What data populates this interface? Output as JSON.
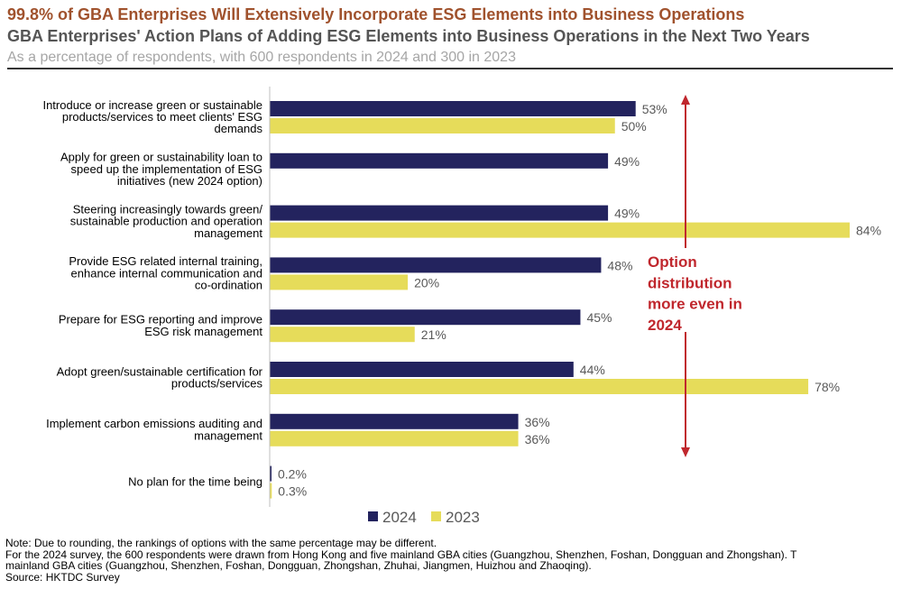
{
  "header": {
    "title": "99.8% of GBA Enterprises Will Extensively Incorporate ESG Elements into Business Operations",
    "subtitle": "GBA Enterprises' Action Plans of Adding ESG Elements into Business Operations in the Next Two Years",
    "description": "As a percentage of respondents, with 600 respondents in 2024 and 300 in 2023"
  },
  "chart_data": {
    "type": "bar",
    "orientation": "horizontal",
    "categories": [
      [
        "Introduce or increase green or sustainable",
        "products/services to meet clients' ESG",
        "demands"
      ],
      [
        "Apply for green or sustainability loan to",
        "speed up the implementation of ESG",
        "initiatives (new 2024 option)"
      ],
      [
        "Steering increasingly towards green/",
        "sustainable production and operation",
        "management"
      ],
      [
        "Provide ESG related internal training,",
        "enhance internal communication and",
        "co-ordination"
      ],
      [
        "Prepare for ESG reporting and improve",
        "ESG risk management"
      ],
      [
        "Adopt green/sustainable certification for",
        "products/services"
      ],
      [
        "Implement carbon emissions auditing and",
        "management"
      ],
      [
        "No plan for the time being"
      ]
    ],
    "series": [
      {
        "name": "2024",
        "color": "#23235e",
        "values": [
          53,
          49,
          49,
          48,
          45,
          44,
          36,
          0.2
        ],
        "labels": [
          "53%",
          "49%",
          "49%",
          "48%",
          "45%",
          "44%",
          "36%",
          "0.2%"
        ]
      },
      {
        "name": "2023",
        "color": "#e6dc5a",
        "values": [
          50,
          null,
          84,
          20,
          21,
          78,
          36,
          0.3
        ],
        "labels": [
          "50%",
          "",
          "84%",
          "20%",
          "21%",
          "78%",
          "36%",
          "0.3%"
        ]
      }
    ],
    "xlim": [
      0,
      84
    ],
    "annotation": {
      "lines": [
        "Option",
        "distribution",
        "more even in",
        "2024"
      ],
      "color": "#c0272d"
    },
    "legend_position": "bottom-center"
  },
  "notes": {
    "lines": [
      "Note: Due to rounding, the rankings of options with the same percentage may be different.",
      "For the 2024 survey, the 600 respondents were drawn from Hong Kong and five mainland GBA cities (Guangzhou, Shenzhen, Foshan, Dongguan and Zhongshan). T",
      "mainland GBA cities (Guangzhou, Shenzhen, Foshan, Dongguan, Zhongshan, Zhuhai, Jiangmen, Huizhou and Zhaoqing).",
      "Source: HKTDC Survey"
    ]
  }
}
